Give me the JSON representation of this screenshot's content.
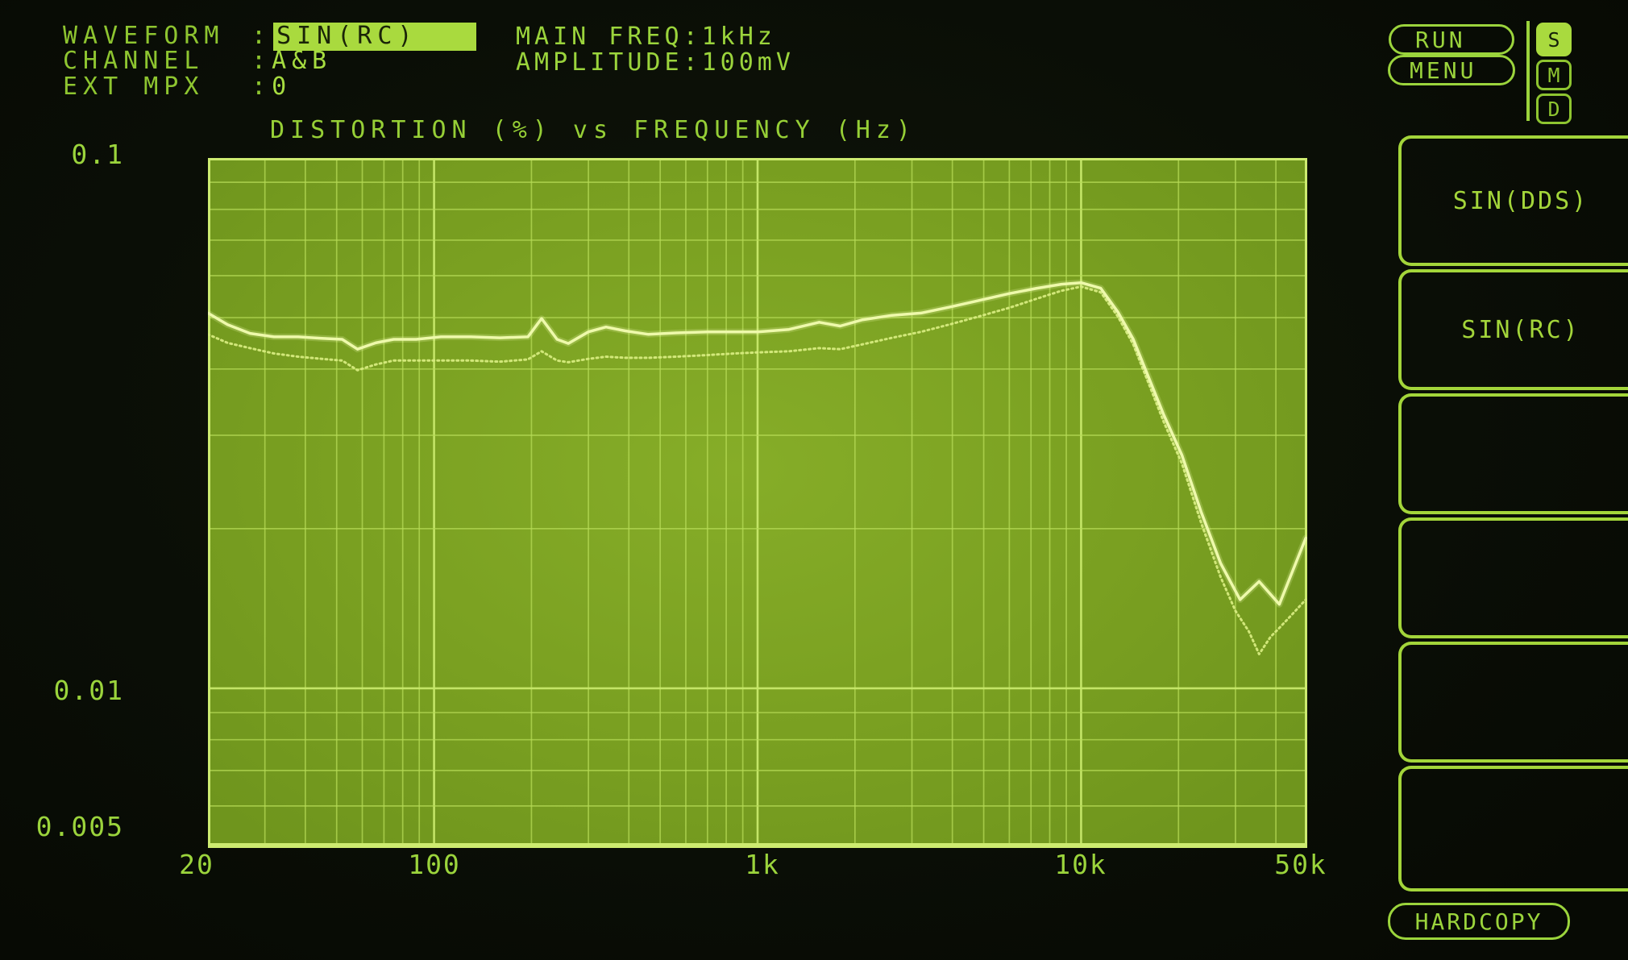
{
  "screen": {
    "bg": "#0a0e06",
    "text_green": "#9bd43c",
    "dim_green": "#8ec530",
    "highlight_bg": "#a9da3e",
    "highlight_text": "#1a2408",
    "plot_bg": "#7aa021",
    "grid_minor": "#b7dc57",
    "grid_major": "#c8e96b",
    "border": "#cdeb70",
    "trace_a": "#eef9ab",
    "trace_b": "#d6eb7e"
  },
  "header": {
    "left_fields": [
      {
        "label": "WAVEFORM",
        "colon": ":",
        "value": "SIN(RC)",
        "highlighted": true
      },
      {
        "label": "CHANNEL",
        "colon": ":",
        "value": "A&B",
        "highlighted": false
      },
      {
        "label": "EXT MPX",
        "colon": ":",
        "value": "0",
        "highlighted": false
      }
    ],
    "center_fields": [
      {
        "label": "MAIN FREQ",
        "colon": ":",
        "value": "1kHz"
      },
      {
        "label": "AMPLITUDE",
        "colon": ":",
        "value": "100mV"
      }
    ],
    "run_button": "RUN",
    "menu_button": "MENU",
    "indicators": [
      {
        "label": "S",
        "active": true
      },
      {
        "label": "M",
        "active": false
      },
      {
        "label": "D",
        "active": false
      }
    ]
  },
  "side_menu": {
    "items": [
      {
        "label": "SIN(DDS)"
      },
      {
        "label": "SIN(RC)"
      },
      {
        "label": ""
      },
      {
        "label": ""
      },
      {
        "label": ""
      },
      {
        "label": ""
      }
    ],
    "hardcopy": "HARDCOPY"
  },
  "chart_data": {
    "type": "line",
    "title": "DISTORTION (%) vs FREQUENCY (Hz)",
    "xlabel": "FREQUENCY (Hz)",
    "ylabel": "DISTORTION (%)",
    "x_scale": "log",
    "y_scale": "log",
    "xlim": [
      20,
      50000
    ],
    "ylim": [
      0.005,
      0.1
    ],
    "grid": true,
    "legend_position": "none",
    "x_ticks": [
      {
        "value": 20,
        "label": "20"
      },
      {
        "value": 100,
        "label": "100"
      },
      {
        "value": 1000,
        "label": "1k"
      },
      {
        "value": 10000,
        "label": "10k"
      },
      {
        "value": 50000,
        "label": "50k"
      }
    ],
    "y_ticks": [
      {
        "value": 0.1,
        "label": "0.1"
      },
      {
        "value": 0.01,
        "label": "0.01"
      },
      {
        "value": 0.005,
        "label": "0.005"
      }
    ],
    "series": [
      {
        "name": "channel-A",
        "style": "solid",
        "points": [
          [
            20,
            0.051
          ],
          [
            23,
            0.0485
          ],
          [
            27,
            0.0467
          ],
          [
            32,
            0.046
          ],
          [
            38,
            0.046
          ],
          [
            45,
            0.0457
          ],
          [
            52,
            0.0455
          ],
          [
            58,
            0.0436
          ],
          [
            66,
            0.0448
          ],
          [
            75,
            0.0455
          ],
          [
            88,
            0.0455
          ],
          [
            105,
            0.046
          ],
          [
            130,
            0.046
          ],
          [
            160,
            0.0458
          ],
          [
            195,
            0.046
          ],
          [
            215,
            0.0498
          ],
          [
            240,
            0.0455
          ],
          [
            260,
            0.0447
          ],
          [
            300,
            0.047
          ],
          [
            340,
            0.048
          ],
          [
            390,
            0.0472
          ],
          [
            460,
            0.0465
          ],
          [
            560,
            0.0468
          ],
          [
            700,
            0.047
          ],
          [
            850,
            0.047
          ],
          [
            1000,
            0.047
          ],
          [
            1250,
            0.0475
          ],
          [
            1550,
            0.049
          ],
          [
            1800,
            0.0482
          ],
          [
            2100,
            0.0495
          ],
          [
            2600,
            0.0505
          ],
          [
            3200,
            0.051
          ],
          [
            3900,
            0.0523
          ],
          [
            4800,
            0.0538
          ],
          [
            6000,
            0.0555
          ],
          [
            7300,
            0.0568
          ],
          [
            8700,
            0.0578
          ],
          [
            10000,
            0.0582
          ],
          [
            11500,
            0.0568
          ],
          [
            13000,
            0.0512
          ],
          [
            14500,
            0.0455
          ],
          [
            16000,
            0.0392
          ],
          [
            18000,
            0.0328
          ],
          [
            20500,
            0.0275
          ],
          [
            23500,
            0.0215
          ],
          [
            27000,
            0.0172
          ],
          [
            31000,
            0.0147
          ],
          [
            35500,
            0.0159
          ],
          [
            41000,
            0.0144
          ],
          [
            49500,
            0.0192
          ]
        ]
      },
      {
        "name": "channel-B",
        "style": "dotted",
        "points": [
          [
            20,
            0.0465
          ],
          [
            23,
            0.0448
          ],
          [
            27,
            0.0438
          ],
          [
            32,
            0.0428
          ],
          [
            38,
            0.0422
          ],
          [
            45,
            0.0418
          ],
          [
            52,
            0.0415
          ],
          [
            58,
            0.0398
          ],
          [
            66,
            0.0408
          ],
          [
            75,
            0.0415
          ],
          [
            88,
            0.0415
          ],
          [
            105,
            0.0415
          ],
          [
            130,
            0.0415
          ],
          [
            160,
            0.0413
          ],
          [
            195,
            0.0417
          ],
          [
            215,
            0.0432
          ],
          [
            240,
            0.0415
          ],
          [
            260,
            0.0412
          ],
          [
            300,
            0.0418
          ],
          [
            340,
            0.0422
          ],
          [
            390,
            0.042
          ],
          [
            460,
            0.042
          ],
          [
            560,
            0.0422
          ],
          [
            700,
            0.0425
          ],
          [
            850,
            0.0428
          ],
          [
            1000,
            0.043
          ],
          [
            1250,
            0.0432
          ],
          [
            1550,
            0.0438
          ],
          [
            1800,
            0.0436
          ],
          [
            2100,
            0.0445
          ],
          [
            2600,
            0.0458
          ],
          [
            3200,
            0.047
          ],
          [
            3900,
            0.0485
          ],
          [
            4800,
            0.0502
          ],
          [
            6000,
            0.0522
          ],
          [
            7300,
            0.0543
          ],
          [
            8700,
            0.0562
          ],
          [
            10000,
            0.0572
          ],
          [
            11500,
            0.0558
          ],
          [
            13000,
            0.0502
          ],
          [
            14500,
            0.0445
          ],
          [
            16000,
            0.0382
          ],
          [
            18000,
            0.0318
          ],
          [
            20500,
            0.0265
          ],
          [
            23500,
            0.0205
          ],
          [
            27000,
            0.0162
          ],
          [
            30000,
            0.014
          ],
          [
            33000,
            0.0128
          ],
          [
            35500,
            0.0116
          ],
          [
            38500,
            0.0125
          ],
          [
            41000,
            0.013
          ],
          [
            45000,
            0.0138
          ],
          [
            49500,
            0.0147
          ]
        ]
      }
    ]
  }
}
